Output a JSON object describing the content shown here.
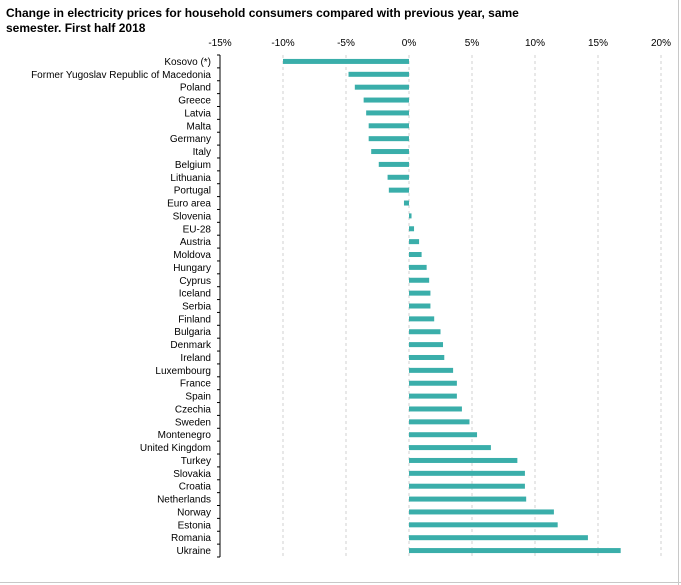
{
  "chart_data": {
    "type": "bar",
    "orientation": "horizontal",
    "title": "Change in electricity prices for household consumers compared with previous year, same semester. First half 2018",
    "xlabel": "",
    "ylabel": "",
    "xlim": [
      -15,
      20
    ],
    "x_ticks": [
      -15,
      -10,
      -5,
      0,
      5,
      10,
      15,
      20
    ],
    "x_tick_labels": [
      "-15%",
      "-10%",
      "-5%",
      "0%",
      "5%",
      "10%",
      "15%",
      "20%"
    ],
    "gridlines": true,
    "bar_color": "#3aaeaa",
    "categories": [
      "Kosovo (*)",
      "Former Yugoslav Republic of Macedonia",
      "Poland",
      "Greece",
      "Latvia",
      "Malta",
      "Germany",
      "Italy",
      "Belgium",
      "Lithuania",
      "Portugal",
      "Euro area",
      "Slovenia",
      "EU-28",
      "Austria",
      "Moldova",
      "Hungary",
      "Cyprus",
      "Iceland",
      "Serbia",
      "Finland",
      "Bulgaria",
      "Denmark",
      "Ireland",
      "Luxembourg",
      "France",
      "Spain",
      "Czechia",
      "Sweden",
      "Montenegro",
      "United Kingdom",
      "Turkey",
      "Slovakia",
      "Croatia",
      "Netherlands",
      "Norway",
      "Estonia",
      "Romania",
      "Ukraine"
    ],
    "values": [
      -10.0,
      -4.8,
      -4.3,
      -3.6,
      -3.4,
      -3.2,
      -3.2,
      -3.0,
      -2.4,
      -1.7,
      -1.6,
      -0.4,
      0.2,
      0.4,
      0.8,
      1.0,
      1.4,
      1.6,
      1.7,
      1.7,
      2.0,
      2.5,
      2.7,
      2.8,
      3.5,
      3.8,
      3.8,
      4.2,
      4.8,
      5.4,
      6.5,
      8.6,
      9.2,
      9.2,
      9.3,
      11.5,
      11.8,
      14.2,
      16.8
    ]
  }
}
